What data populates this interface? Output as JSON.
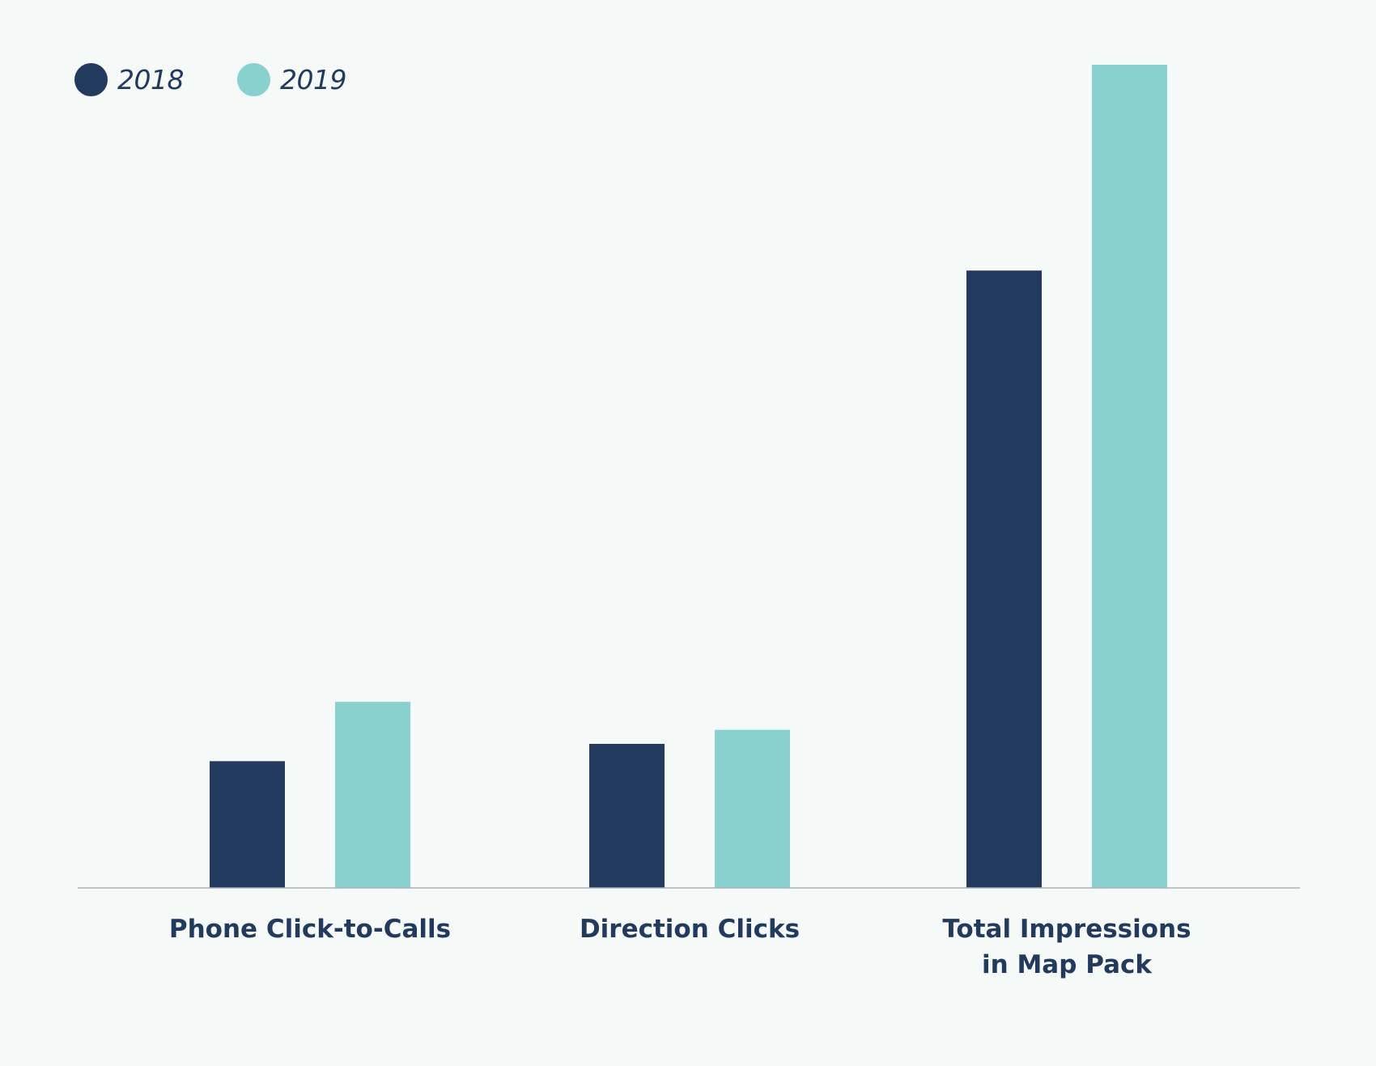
{
  "chart_data": {
    "type": "bar",
    "title": "",
    "xlabel": "",
    "ylabel": "",
    "categories": [
      [
        "Phone Click-to-Calls"
      ],
      [
        "Direction Clicks"
      ],
      [
        "Total Impressions",
        "in Map Pack"
      ]
    ],
    "series": [
      {
        "name": "2018",
        "color": "#223a5e",
        "values": [
          15.4,
          17.5,
          75.0
        ]
      },
      {
        "name": "2019",
        "color": "#88d1cf",
        "values": [
          22.6,
          19.2,
          100.0
        ]
      }
    ],
    "ylim": [
      0,
      100
    ],
    "grid": false,
    "legend_placement": "top-left"
  }
}
